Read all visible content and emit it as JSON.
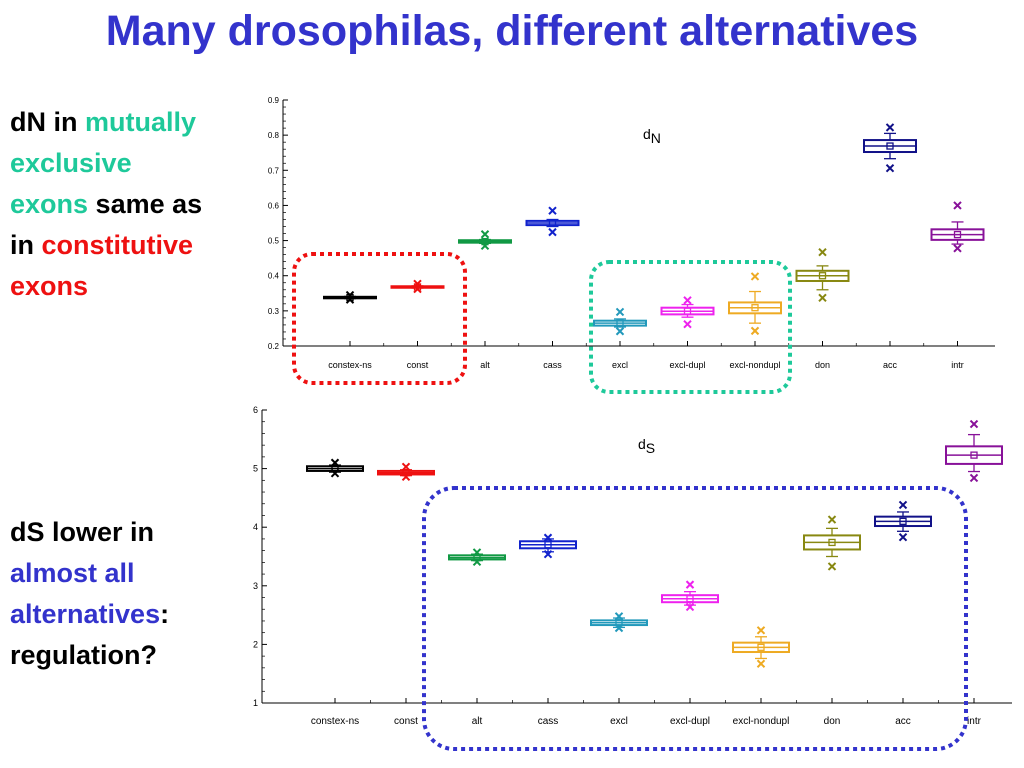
{
  "title": "Many drosophilas, different alternatives",
  "colors": {
    "title": "#3333cc",
    "teal": "#1ec99a",
    "red": "#ee1111",
    "blue": "#3333cc",
    "black": "#000000"
  },
  "side_top": [
    {
      "text": "dN in ",
      "color": "black"
    },
    {
      "text": "mutually exclusive exons",
      "color": "teal"
    },
    {
      "text": " same as in ",
      "color": "black"
    },
    {
      "text": "constitutive exons",
      "color": "red"
    }
  ],
  "side_bottom": [
    {
      "text": "dS lower in ",
      "color": "black"
    },
    {
      "text": "almost all alternatives",
      "color": "blue"
    },
    {
      "text": ": regulation?",
      "color": "black"
    }
  ],
  "chart_data": [
    {
      "type": "box",
      "title": "dN",
      "title_main": "d",
      "title_sub": "N",
      "categories": [
        "constex-ns",
        "const",
        "alt",
        "cass",
        "excl",
        "excl-dupl",
        "excl-nondupl",
        "don",
        "acc",
        "intr"
      ],
      "colors": [
        "#000000",
        "#ee1111",
        "#119944",
        "#1122cc",
        "#2299bb",
        "#ee22ee",
        "#eeaa22",
        "#888811",
        "#111188",
        "#881199"
      ],
      "ylim": [
        0.2,
        0.9
      ],
      "yticks": [
        "0.2",
        "0.3",
        "0.4",
        "0.5",
        "0.6",
        "0.7",
        "0.8",
        "0.9"
      ],
      "boxes": [
        {
          "q1": 0.336,
          "median": 0.338,
          "q3": 0.34,
          "mean": 0.338,
          "wlo": 0.335,
          "whi": 0.341,
          "min": 0.332,
          "max": 0.345
        },
        {
          "q1": 0.366,
          "median": 0.368,
          "q3": 0.37,
          "mean": 0.368,
          "wlo": 0.365,
          "whi": 0.371,
          "min": 0.362,
          "max": 0.377
        },
        {
          "q1": 0.494,
          "median": 0.497,
          "q3": 0.501,
          "mean": 0.497,
          "wlo": 0.492,
          "whi": 0.503,
          "min": 0.485,
          "max": 0.518
        },
        {
          "q1": 0.544,
          "median": 0.55,
          "q3": 0.556,
          "mean": 0.55,
          "wlo": 0.54,
          "whi": 0.56,
          "min": 0.524,
          "max": 0.585
        },
        {
          "q1": 0.258,
          "median": 0.265,
          "q3": 0.272,
          "mean": 0.265,
          "wlo": 0.254,
          "whi": 0.277,
          "min": 0.242,
          "max": 0.297
        },
        {
          "q1": 0.29,
          "median": 0.299,
          "q3": 0.309,
          "mean": 0.299,
          "wlo": 0.282,
          "whi": 0.318,
          "min": 0.262,
          "max": 0.33
        },
        {
          "q1": 0.293,
          "median": 0.309,
          "q3": 0.324,
          "mean": 0.309,
          "wlo": 0.265,
          "whi": 0.355,
          "min": 0.243,
          "max": 0.398
        },
        {
          "q1": 0.385,
          "median": 0.4,
          "q3": 0.414,
          "mean": 0.4,
          "wlo": 0.36,
          "whi": 0.428,
          "min": 0.337,
          "max": 0.467
        },
        {
          "q1": 0.752,
          "median": 0.769,
          "q3": 0.786,
          "mean": 0.769,
          "wlo": 0.733,
          "whi": 0.805,
          "min": 0.706,
          "max": 0.822
        },
        {
          "q1": 0.502,
          "median": 0.517,
          "q3": 0.532,
          "mean": 0.517,
          "wlo": 0.49,
          "whi": 0.553,
          "min": 0.478,
          "max": 0.6
        }
      ]
    },
    {
      "type": "box",
      "title": "dS",
      "title_main": "d",
      "title_sub": "S",
      "categories": [
        "constex-ns",
        "const",
        "alt",
        "cass",
        "excl",
        "excl-dupl",
        "excl-nondupl",
        "don",
        "acc",
        "intr"
      ],
      "colors": [
        "#000000",
        "#ee1111",
        "#119944",
        "#1122cc",
        "#2299bb",
        "#ee22ee",
        "#eeaa22",
        "#888811",
        "#111188",
        "#881199"
      ],
      "ylim": [
        1,
        6
      ],
      "yticks": [
        "1",
        "2",
        "3",
        "4",
        "5",
        "6"
      ],
      "boxes": [
        {
          "q1": 4.96,
          "median": 5.0,
          "q3": 5.04,
          "mean": 5.0,
          "wlo": 4.94,
          "whi": 5.06,
          "min": 4.92,
          "max": 5.1
        },
        {
          "q1": 4.9,
          "median": 4.93,
          "q3": 4.96,
          "mean": 4.93,
          "wlo": 4.88,
          "whi": 4.98,
          "min": 4.86,
          "max": 5.03
        },
        {
          "q1": 3.45,
          "median": 3.48,
          "q3": 3.52,
          "mean": 3.48,
          "wlo": 3.43,
          "whi": 3.54,
          "min": 3.41,
          "max": 3.57
        },
        {
          "q1": 3.64,
          "median": 3.7,
          "q3": 3.76,
          "mean": 3.7,
          "wlo": 3.58,
          "whi": 3.8,
          "min": 3.54,
          "max": 3.82
        },
        {
          "q1": 2.33,
          "median": 2.37,
          "q3": 2.41,
          "mean": 2.37,
          "wlo": 2.29,
          "whi": 2.45,
          "min": 2.28,
          "max": 2.48
        },
        {
          "q1": 2.72,
          "median": 2.78,
          "q3": 2.84,
          "mean": 2.78,
          "wlo": 2.67,
          "whi": 2.9,
          "min": 2.64,
          "max": 3.02
        },
        {
          "q1": 1.87,
          "median": 1.95,
          "q3": 2.03,
          "mean": 1.95,
          "wlo": 1.76,
          "whi": 2.13,
          "min": 1.67,
          "max": 2.24
        },
        {
          "q1": 3.62,
          "median": 3.74,
          "q3": 3.86,
          "mean": 3.74,
          "wlo": 3.5,
          "whi": 3.98,
          "min": 3.33,
          "max": 4.13
        },
        {
          "q1": 4.02,
          "median": 4.1,
          "q3": 4.18,
          "mean": 4.1,
          "wlo": 3.93,
          "whi": 4.26,
          "min": 3.83,
          "max": 4.38
        },
        {
          "q1": 5.08,
          "median": 5.23,
          "q3": 5.38,
          "mean": 5.23,
          "wlo": 4.95,
          "whi": 5.58,
          "min": 4.84,
          "max": 5.76
        }
      ]
    }
  ]
}
